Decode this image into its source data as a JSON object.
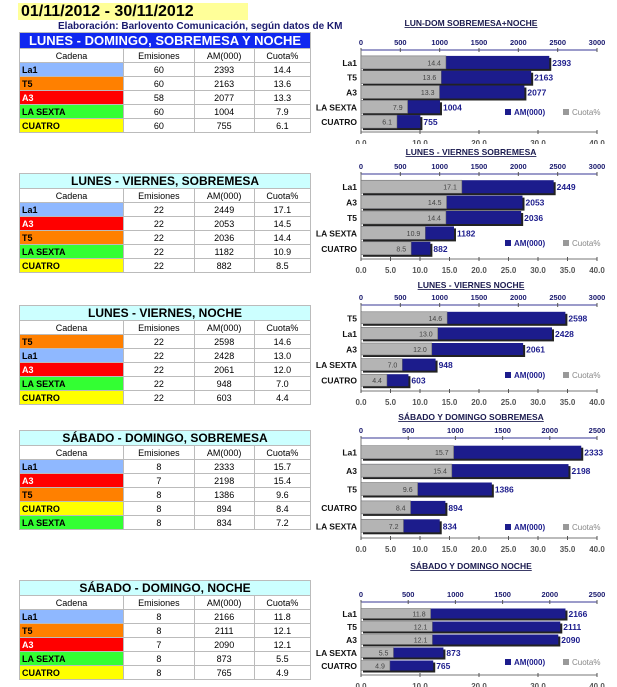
{
  "header": {
    "date_range": "01/11/2012 - 30/11/2012",
    "source": "Elaboración: Barlovento Comunicación, según datos de KM"
  },
  "columns": [
    "Cadena",
    "Emisiones",
    "AM(000)",
    "Cuota%"
  ],
  "colors": {
    "La1": "#8fb8ff",
    "T5": "#ff8000",
    "A3": "#ff0000",
    "LA SEXTA": "#33ff33",
    "CUATRO": "#ffff00",
    "am_bar": "#1c1c8c",
    "cuota_bar": "#b4b4b4"
  },
  "sections": [
    {
      "table_title": "LUNES - DOMINGO, SOBREMESA Y NOCHE",
      "style": "blue",
      "rows": [
        [
          "La1",
          "60",
          "2393",
          "14.4"
        ],
        [
          "T5",
          "60",
          "2163",
          "13.6"
        ],
        [
          "A3",
          "58",
          "2077",
          "13.3"
        ],
        [
          "LA SEXTA",
          "60",
          "1004",
          "7.9"
        ],
        [
          "CUATRO",
          "60",
          "755",
          "6.1"
        ]
      ]
    },
    {
      "table_title": "LUNES - VIERNES, SOBREMESA",
      "style": "cyan",
      "rows": [
        [
          "La1",
          "22",
          "2449",
          "17.1"
        ],
        [
          "A3",
          "22",
          "2053",
          "14.5"
        ],
        [
          "T5",
          "22",
          "2036",
          "14.4"
        ],
        [
          "LA SEXTA",
          "22",
          "1182",
          "10.9"
        ],
        [
          "CUATRO",
          "22",
          "882",
          "8.5"
        ]
      ]
    },
    {
      "table_title": "LUNES - VIERNES, NOCHE",
      "style": "cyan",
      "rows": [
        [
          "T5",
          "22",
          "2598",
          "14.6"
        ],
        [
          "La1",
          "22",
          "2428",
          "13.0"
        ],
        [
          "A3",
          "22",
          "2061",
          "12.0"
        ],
        [
          "LA SEXTA",
          "22",
          "948",
          "7.0"
        ],
        [
          "CUATRO",
          "22",
          "603",
          "4.4"
        ]
      ]
    },
    {
      "table_title": "SÁBADO - DOMINGO, SOBREMESA",
      "style": "cyan",
      "rows": [
        [
          "La1",
          "8",
          "2333",
          "15.7"
        ],
        [
          "A3",
          "7",
          "2198",
          "15.4"
        ],
        [
          "T5",
          "8",
          "1386",
          "9.6"
        ],
        [
          "CUATRO",
          "8",
          "894",
          "8.4"
        ],
        [
          "LA SEXTA",
          "8",
          "834",
          "7.2"
        ]
      ]
    },
    {
      "table_title": "SÁBADO - DOMINGO, NOCHE",
      "style": "cyan",
      "rows": [
        [
          "La1",
          "8",
          "2166",
          "11.8"
        ],
        [
          "T5",
          "8",
          "2111",
          "12.1"
        ],
        [
          "A3",
          "7",
          "2090",
          "12.1"
        ],
        [
          "LA SEXTA",
          "8",
          "873",
          "5.5"
        ],
        [
          "CUATRO",
          "8",
          "765",
          "4.9"
        ]
      ]
    }
  ],
  "chart_data": [
    {
      "type": "bar",
      "title": "LUN-DOM SOBREMESA+NOCHE",
      "categories": [
        "La1",
        "T5",
        "A3",
        "LA SEXTA",
        "CUATRO"
      ],
      "series": [
        {
          "name": "AM(000)",
          "values": [
            2393,
            2163,
            2077,
            1004,
            755
          ]
        },
        {
          "name": "Cuota%",
          "values": [
            14.4,
            13.6,
            13.3,
            7.9,
            6.1
          ]
        }
      ],
      "top_axis": {
        "range": [
          0,
          3000
        ],
        "ticks": [
          "0",
          "500",
          "1000",
          "1500",
          "2000",
          "2500",
          "3000"
        ]
      },
      "bottom_axis": {
        "range": [
          0,
          40
        ],
        "ticks": [
          "0.0",
          "10.0",
          "20.0",
          "30.0",
          "40.0"
        ]
      },
      "legend": "bottom-right"
    },
    {
      "type": "bar",
      "title": "LUNES - VIERNES SOBREMESA",
      "categories": [
        "La1",
        "A3",
        "T5",
        "LA SEXTA",
        "CUATRO"
      ],
      "series": [
        {
          "name": "AM(000)",
          "values": [
            2449,
            2053,
            2036,
            1182,
            882
          ]
        },
        {
          "name": "Cuota%",
          "values": [
            17.1,
            14.5,
            14.4,
            10.9,
            8.5
          ]
        }
      ],
      "top_axis": {
        "range": [
          0,
          3000
        ],
        "ticks": [
          "0",
          "500",
          "1000",
          "1500",
          "2000",
          "2500",
          "3000"
        ]
      },
      "bottom_axis": {
        "range": [
          0,
          40
        ],
        "ticks": [
          "0.0",
          "5.0",
          "10.0",
          "15.0",
          "20.0",
          "25.0",
          "30.0",
          "35.0",
          "40.0"
        ]
      },
      "legend": "bottom-center"
    },
    {
      "type": "bar",
      "title": "LUNES - VIERNES  NOCHE",
      "categories": [
        "T5",
        "La1",
        "A3",
        "LA SEXTA",
        "CUATRO"
      ],
      "series": [
        {
          "name": "AM(000)",
          "values": [
            2598,
            2428,
            2061,
            948,
            603
          ]
        },
        {
          "name": "Cuota%",
          "values": [
            14.6,
            13.0,
            12.0,
            7.0,
            4.4
          ]
        }
      ],
      "top_axis": {
        "range": [
          0,
          3000
        ],
        "ticks": [
          "0",
          "500",
          "1000",
          "1500",
          "2000",
          "2500",
          "3000"
        ]
      },
      "bottom_axis": {
        "range": [
          0,
          40
        ],
        "ticks": [
          "0.0",
          "5.0",
          "10.0",
          "15.0",
          "20.0",
          "25.0",
          "30.0",
          "35.0",
          "40.0"
        ]
      },
      "legend": "bottom-center"
    },
    {
      "type": "bar",
      "title": "SÁBADO Y DOMINGO SOBREMESA",
      "categories": [
        "La1",
        "A3",
        "T5",
        "CUATRO",
        "LA SEXTA"
      ],
      "series": [
        {
          "name": "AM(000)",
          "values": [
            2333,
            2198,
            1386,
            894,
            834
          ]
        },
        {
          "name": "Cuota%",
          "values": [
            15.7,
            15.4,
            9.6,
            8.4,
            7.2
          ]
        }
      ],
      "top_axis": {
        "range": [
          0,
          2500
        ],
        "ticks": [
          "0",
          "500",
          "1000",
          "1500",
          "2000",
          "2500"
        ]
      },
      "bottom_axis": {
        "range": [
          0,
          40
        ],
        "ticks": [
          "0.0",
          "5.0",
          "10.0",
          "15.0",
          "20.0",
          "25.0",
          "30.0",
          "35.0",
          "40.0"
        ]
      },
      "legend": "bottom-right"
    },
    {
      "type": "bar",
      "title": "SÁBADO Y DOMINGO  NOCHE",
      "categories": [
        "La1",
        "T5",
        "A3",
        "LA SEXTA",
        "CUATRO"
      ],
      "series": [
        {
          "name": "AM(000)",
          "values": [
            2166,
            2111,
            2090,
            873,
            765
          ]
        },
        {
          "name": "Cuota%",
          "values": [
            11.8,
            12.1,
            12.1,
            5.5,
            4.9
          ]
        }
      ],
      "top_axis": {
        "range": [
          0,
          2500
        ],
        "ticks": [
          "0",
          "500",
          "1000",
          "1500",
          "2000",
          "2500"
        ]
      },
      "bottom_axis": {
        "range": [
          0,
          40
        ],
        "ticks": [
          "0.0",
          "10.0",
          "20.0",
          "30.0",
          "40.0"
        ]
      },
      "legend": "bottom-right"
    }
  ]
}
